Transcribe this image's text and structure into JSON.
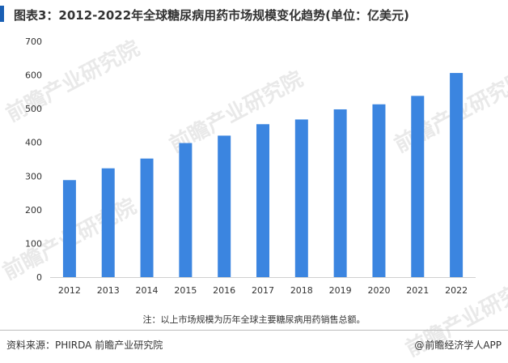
{
  "title": "图表3：2012-2022年全球糖尿病用药市场规模变化趋势(单位：亿美元)",
  "note": "注：以上市场规模为历年全球主要糖尿病用药销售总额。",
  "footer": {
    "source": "资料来源：PHIRDA 前瞻产业研究院",
    "brand_icon": "@",
    "brand": "前瞻经济学人APP"
  },
  "watermark": "前瞻产业研究院",
  "colors": {
    "bar": "#3b85e0",
    "accent": "#1a5fb4"
  },
  "chart_data": {
    "type": "bar",
    "categories": [
      "2012",
      "2013",
      "2014",
      "2015",
      "2016",
      "2017",
      "2018",
      "2019",
      "2020",
      "2021",
      "2022"
    ],
    "values": [
      288,
      323,
      352,
      398,
      420,
      454,
      468,
      498,
      513,
      538,
      606
    ],
    "ylim": [
      0,
      700
    ],
    "yticks": [
      0,
      100,
      200,
      300,
      400,
      500,
      600,
      700
    ],
    "grid": false,
    "legend": "none"
  }
}
